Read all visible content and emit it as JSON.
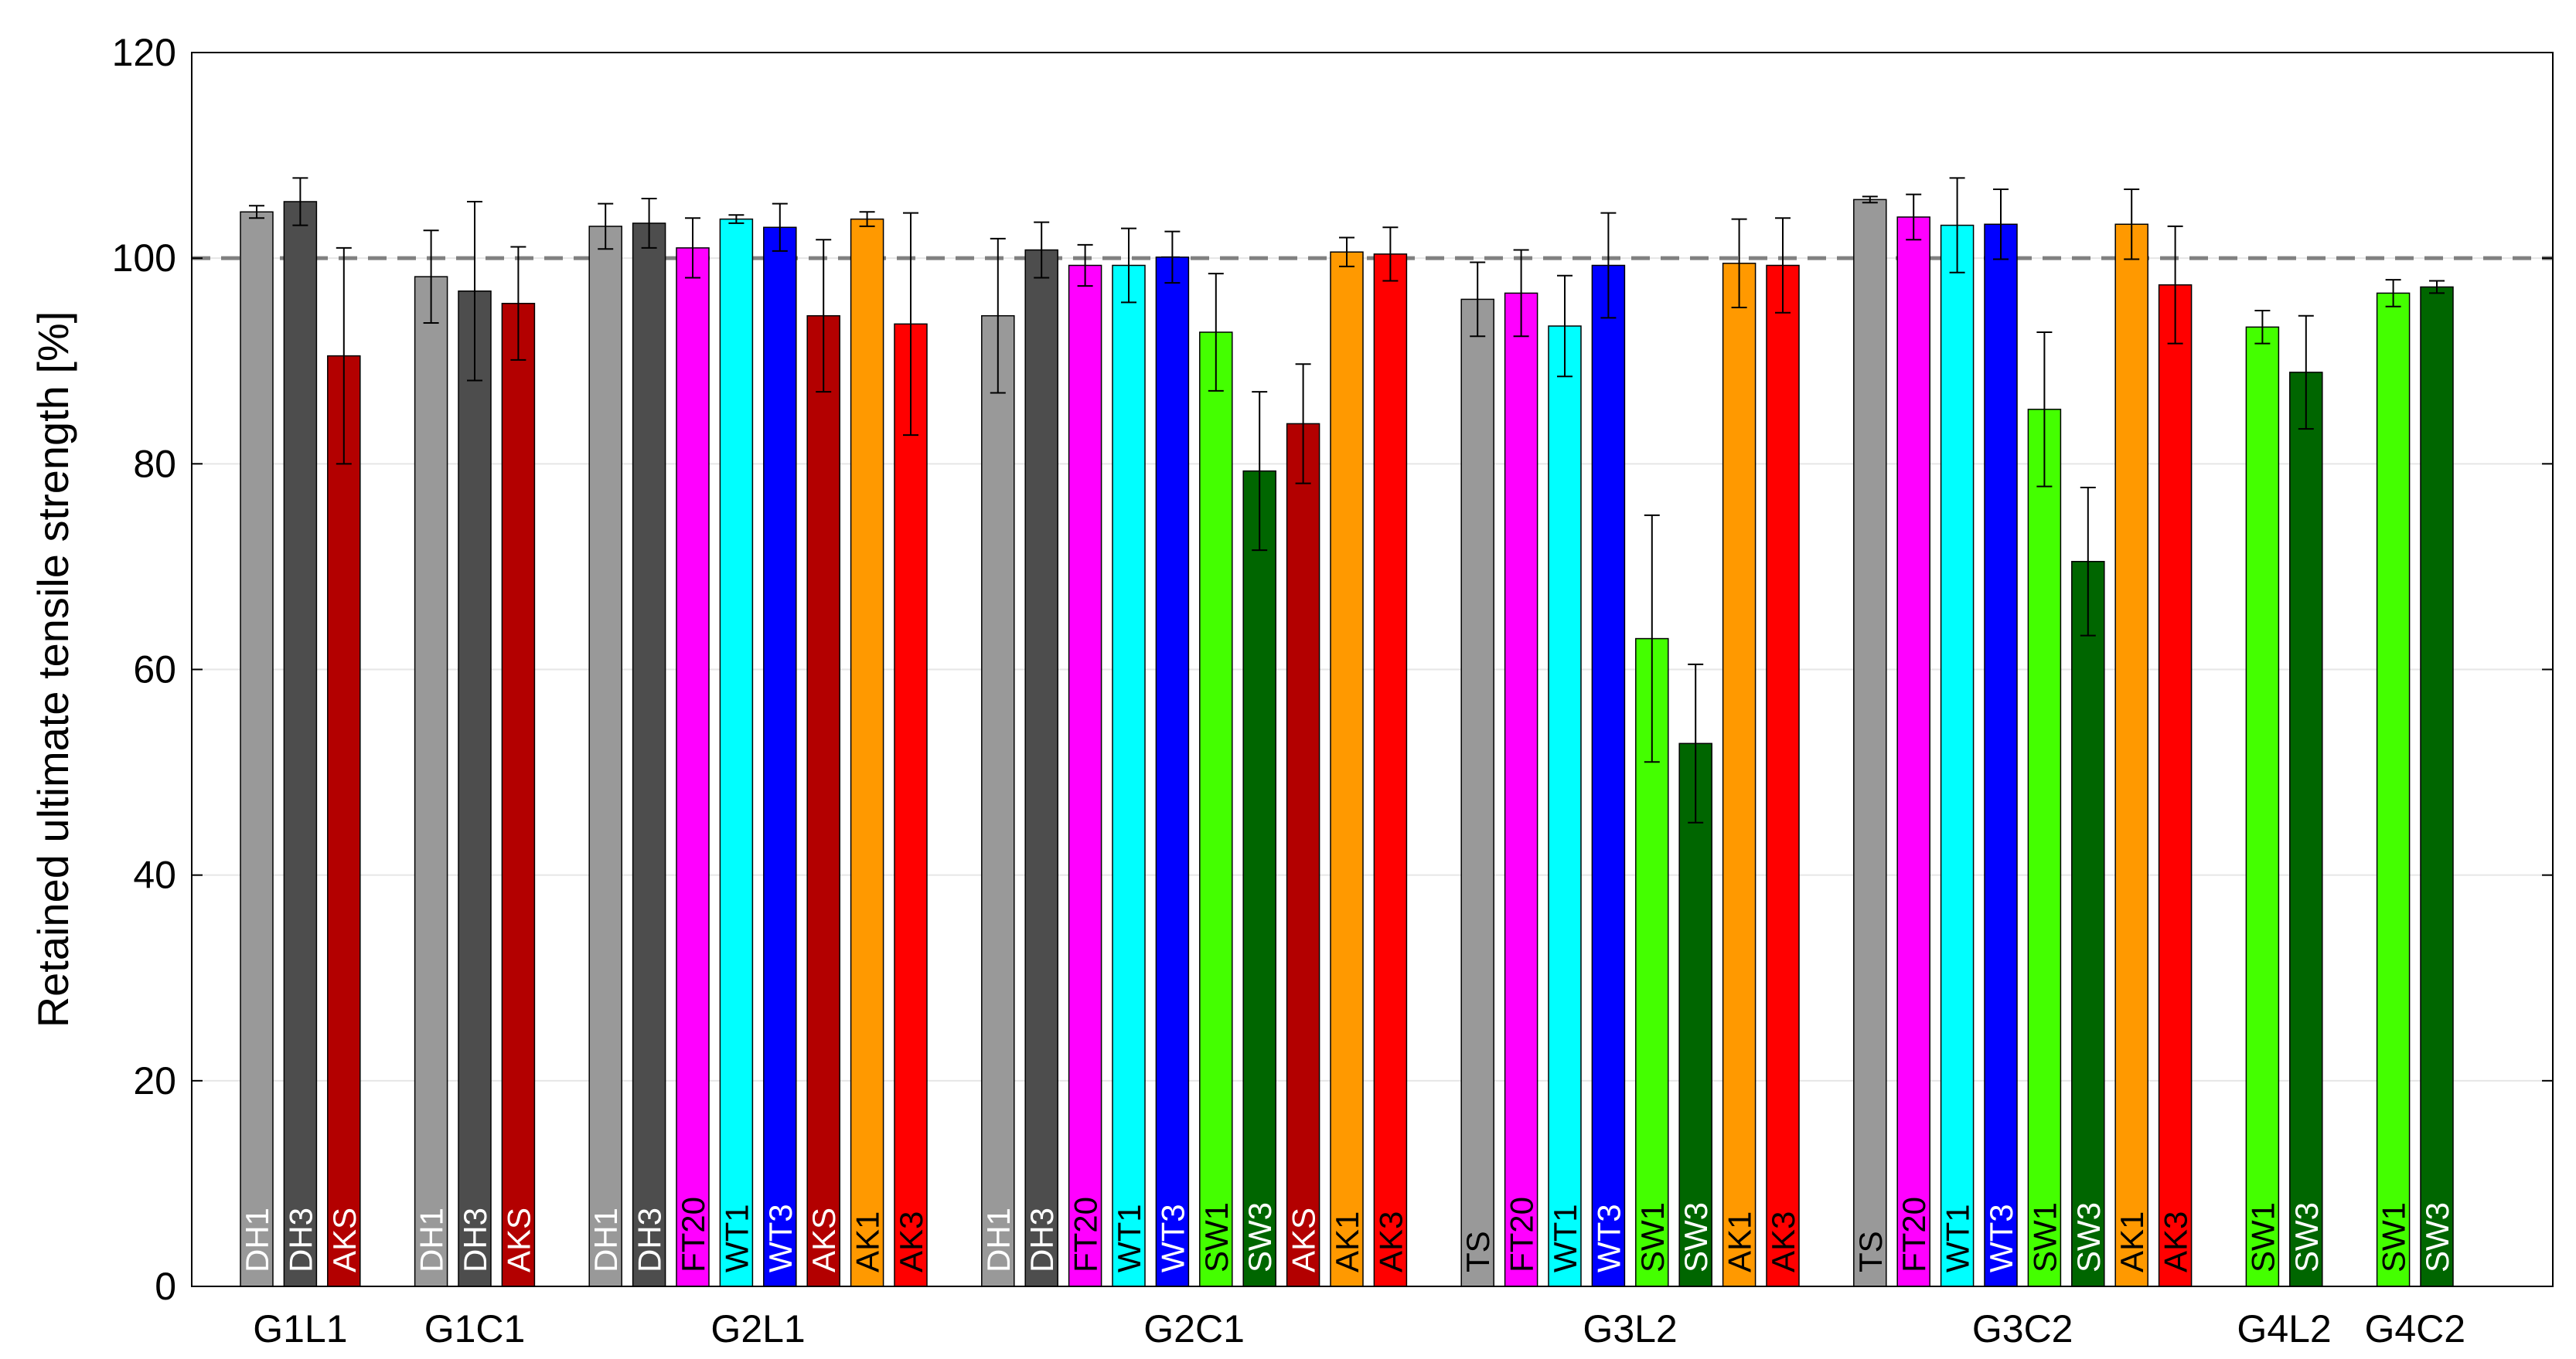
{
  "chart_data": {
    "type": "bar",
    "ylabel": "Retained ultimate tensile strength [%]",
    "ylim": [
      0,
      120
    ],
    "yticks": [
      0,
      20,
      40,
      60,
      80,
      100,
      120
    ],
    "reference_line": 100,
    "grid": true,
    "colors": {
      "DH1": "#999999",
      "DH3": "#4d4d4d",
      "AKS": "#b30000",
      "FT20": "#ff00ff",
      "WT1": "#00ffff",
      "WT3": "#0000ff",
      "AK1": "#ff9900",
      "AK3": "#ff0000",
      "SW1": "#44ff00",
      "SW3": "#006600",
      "TS": "#999999"
    },
    "label_text_colors": {
      "DH1": "#ffffff",
      "DH3": "#ffffff",
      "AKS": "#ffffff",
      "FT20": "#000000",
      "WT1": "#000000",
      "WT3": "#ffffff",
      "AK1": "#000000",
      "AK3": "#000000",
      "SW1": "#000000",
      "SW3": "#ffffff",
      "TS": "#000000"
    },
    "groups": [
      {
        "name": "G1L1",
        "bars": [
          {
            "label": "DH1",
            "value": 104.5,
            "error": 0.6
          },
          {
            "label": "DH3",
            "value": 105.5,
            "error": 2.3
          },
          {
            "label": "AKS",
            "value": 90.5,
            "error": 10.5
          }
        ]
      },
      {
        "name": "G1C1",
        "bars": [
          {
            "label": "DH1",
            "value": 98.2,
            "error": 4.5
          },
          {
            "label": "DH3",
            "value": 96.8,
            "error": 8.7
          },
          {
            "label": "AKS",
            "value": 95.6,
            "error": 5.5
          }
        ]
      },
      {
        "name": "G2L1",
        "bars": [
          {
            "label": "DH1",
            "value": 103.1,
            "error": 2.2
          },
          {
            "label": "DH3",
            "value": 103.4,
            "error": 2.4
          },
          {
            "label": "FT20",
            "value": 101.0,
            "error": 2.9
          },
          {
            "label": "WT1",
            "value": 103.8,
            "error": 0.4
          },
          {
            "label": "WT3",
            "value": 103.0,
            "error": 2.3
          },
          {
            "label": "AKS",
            "value": 94.4,
            "error": 7.4
          },
          {
            "label": "AK1",
            "value": 103.8,
            "error": 0.7
          },
          {
            "label": "AK3",
            "value": 93.6,
            "error": 10.8
          }
        ]
      },
      {
        "name": "G2C1",
        "bars": [
          {
            "label": "DH1",
            "value": 94.4,
            "error": 7.5
          },
          {
            "label": "DH3",
            "value": 100.8,
            "error": 2.7
          },
          {
            "label": "FT20",
            "value": 99.3,
            "error": 2.0
          },
          {
            "label": "WT1",
            "value": 99.3,
            "error": 3.6
          },
          {
            "label": "WT3",
            "value": 100.1,
            "error": 2.5
          },
          {
            "label": "SW1",
            "value": 92.8,
            "error": 5.7
          },
          {
            "label": "SW3",
            "value": 79.3,
            "error": 7.7
          },
          {
            "label": "AKS",
            "value": 83.9,
            "error": 5.8
          },
          {
            "label": "AK1",
            "value": 100.6,
            "error": 1.4
          },
          {
            "label": "AK3",
            "value": 100.4,
            "error": 2.6
          }
        ]
      },
      {
        "name": "G3L2",
        "bars": [
          {
            "label": "TS",
            "value": 96.0,
            "error": 3.6
          },
          {
            "label": "FT20",
            "value": 96.6,
            "error": 4.2
          },
          {
            "label": "WT1",
            "value": 93.4,
            "error": 4.9
          },
          {
            "label": "WT3",
            "value": 99.3,
            "error": 5.1
          },
          {
            "label": "SW1",
            "value": 63.0,
            "error": 12.0
          },
          {
            "label": "SW3",
            "value": 52.8,
            "error": 7.7
          },
          {
            "label": "AK1",
            "value": 99.5,
            "error": 4.3
          },
          {
            "label": "AK3",
            "value": 99.3,
            "error": 4.6
          }
        ]
      },
      {
        "name": "G3C2",
        "bars": [
          {
            "label": "TS",
            "value": 105.7,
            "error": 0.3
          },
          {
            "label": "FT20",
            "value": 104.0,
            "error": 2.2
          },
          {
            "label": "WT1",
            "value": 103.2,
            "error": 4.6
          },
          {
            "label": "WT3",
            "value": 103.3,
            "error": 3.4
          },
          {
            "label": "SW1",
            "value": 85.3,
            "error": 7.5
          },
          {
            "label": "SW3",
            "value": 70.5,
            "error": 7.2
          },
          {
            "label": "AK1",
            "value": 103.3,
            "error": 3.4
          },
          {
            "label": "AK3",
            "value": 97.4,
            "error": 5.7
          }
        ]
      },
      {
        "name": "G4L2",
        "bars": [
          {
            "label": "SW1",
            "value": 93.3,
            "error": 1.6
          },
          {
            "label": "SW3",
            "value": 88.9,
            "error": 5.5
          }
        ]
      },
      {
        "name": "G4C2",
        "bars": [
          {
            "label": "SW1",
            "value": 96.6,
            "error": 1.3
          },
          {
            "label": "SW3",
            "value": 97.2,
            "error": 0.6
          }
        ]
      }
    ]
  }
}
